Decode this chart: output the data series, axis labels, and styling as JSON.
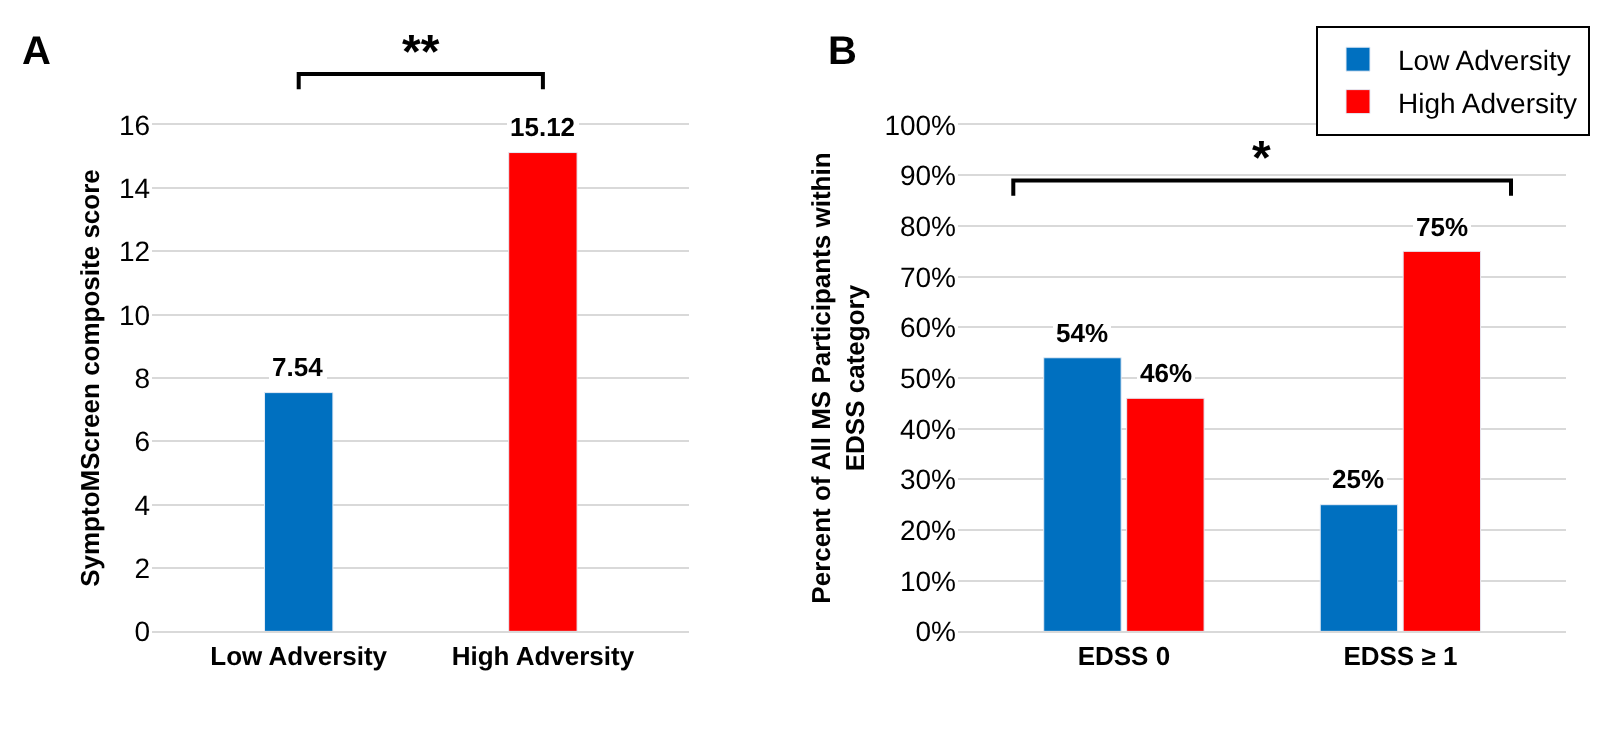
{
  "chart_data": [
    {
      "type": "bar",
      "title": "A",
      "ylabel": "SymptoMScreen composite score",
      "categories": [
        "Low Adversity",
        "High Adversity"
      ],
      "values": [
        7.54,
        15.12
      ],
      "colors": [
        "#0070c0",
        "#ff0000"
      ],
      "ylim": [
        0,
        16
      ],
      "yticks": [
        0,
        2,
        4,
        6,
        8,
        10,
        12,
        14,
        16
      ],
      "grid": "y",
      "data_labels": true,
      "annotations": [
        "**"
      ]
    },
    {
      "type": "bar",
      "title": "B",
      "ylabel": "Percent of All MS Participants within\nEDSS category",
      "categories": [
        "EDSS 0",
        "EDSS ≥ 1"
      ],
      "series": [
        {
          "name": "Low Adversity",
          "color": "#0070c0",
          "values": [
            54,
            25
          ],
          "value_labels": [
            "54%",
            "25%"
          ]
        },
        {
          "name": "High Adversity",
          "color": "#ff0000",
          "values": [
            46,
            75
          ],
          "value_labels": [
            "46%",
            "75%"
          ]
        }
      ],
      "ylim": [
        0,
        100
      ],
      "yticks": [
        {
          "value": 0,
          "label": "0%"
        },
        {
          "value": 10,
          "label": "10%"
        },
        {
          "value": 20,
          "label": "20%"
        },
        {
          "value": 30,
          "label": "30%"
        },
        {
          "value": 40,
          "label": "40%"
        },
        {
          "value": 50,
          "label": "50%"
        },
        {
          "value": 60,
          "label": "60%"
        },
        {
          "value": 70,
          "label": "70%"
        },
        {
          "value": 80,
          "label": "80%"
        },
        {
          "value": 90,
          "label": "90%"
        },
        {
          "value": 100,
          "label": "100%"
        }
      ],
      "grid": "y",
      "legend": "top right",
      "annotations": [
        "*"
      ]
    }
  ]
}
